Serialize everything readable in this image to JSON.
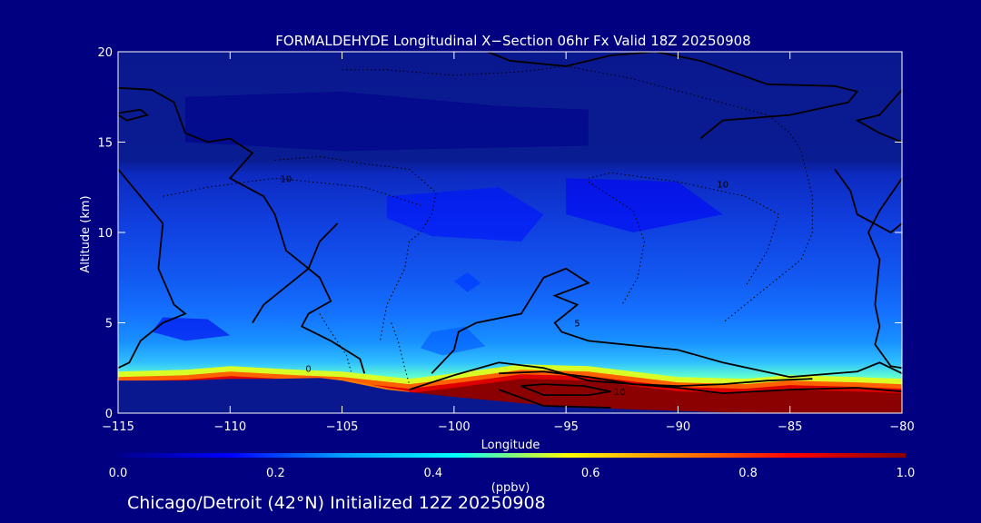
{
  "chart_data": {
    "type": "heatmap",
    "title": "FORMALDEHYDE Longitudinal X−Section 06hr  Fx Valid 18Z 20250908",
    "xlabel": "Longitude",
    "ylabel": "Altitude (km)",
    "xlim": [
      -115,
      -80
    ],
    "ylim": [
      0,
      20
    ],
    "x_ticks": [
      "−115",
      "−110",
      "−105",
      "−100",
      "−95",
      "−90",
      "−85",
      "−80"
    ],
    "y_ticks": [
      "0",
      "5",
      "10",
      "15",
      "20"
    ],
    "colorbar": {
      "label": "(ppbv)",
      "range": [
        0.0,
        1.0
      ],
      "ticks": [
        "0.0",
        "0.2",
        "0.4",
        "0.6",
        "0.8",
        "1.0"
      ],
      "colormap": [
        "#00008b",
        "#0000ff",
        "#00a0ff",
        "#00ffff",
        "#ffff00",
        "#ff8000",
        "#ff0000",
        "#8b0000"
      ]
    },
    "contour_labels": [
      "10",
      "10",
      "10",
      "5",
      "0"
    ],
    "surface_km": [
      [
        -115,
        1.8
      ],
      [
        -112,
        1.8
      ],
      [
        -110,
        1.9
      ],
      [
        -108,
        1.9
      ],
      [
        -106,
        1.95
      ],
      [
        -105,
        1.8
      ],
      [
        -103,
        1.3
      ],
      [
        -100,
        0.9
      ],
      [
        -97,
        0.55
      ],
      [
        -95,
        0.35
      ],
      [
        -92,
        0.2
      ],
      [
        -88,
        0.05
      ],
      [
        -85,
        0.02
      ],
      [
        -80,
        0.0
      ]
    ],
    "surface_layer_ppbv": [
      [
        -115,
        0.75
      ],
      [
        -110,
        0.8
      ],
      [
        -105,
        0.85
      ],
      [
        -103,
        0.95
      ],
      [
        -100,
        1.0
      ],
      [
        -95,
        1.0
      ],
      [
        -90,
        1.0
      ],
      [
        -85,
        1.0
      ],
      [
        -80,
        1.0
      ]
    ],
    "background_ppbv": [
      {
        "altitude_km": 19,
        "value": 0.0
      },
      {
        "altitude_km": 15,
        "value": 0.05
      },
      {
        "altitude_km": 12,
        "value": 0.12
      },
      {
        "altitude_km": 9,
        "value": 0.18
      },
      {
        "altitude_km": 6,
        "value": 0.24
      },
      {
        "altitude_km": 4,
        "value": 0.3
      },
      {
        "altitude_km": 3,
        "value": 0.4
      },
      {
        "altitude_km": 2.5,
        "value": 0.55
      }
    ]
  },
  "footer": {
    "text": "Chicago/Detroit (42°N) Initialized 12Z 20250908"
  }
}
